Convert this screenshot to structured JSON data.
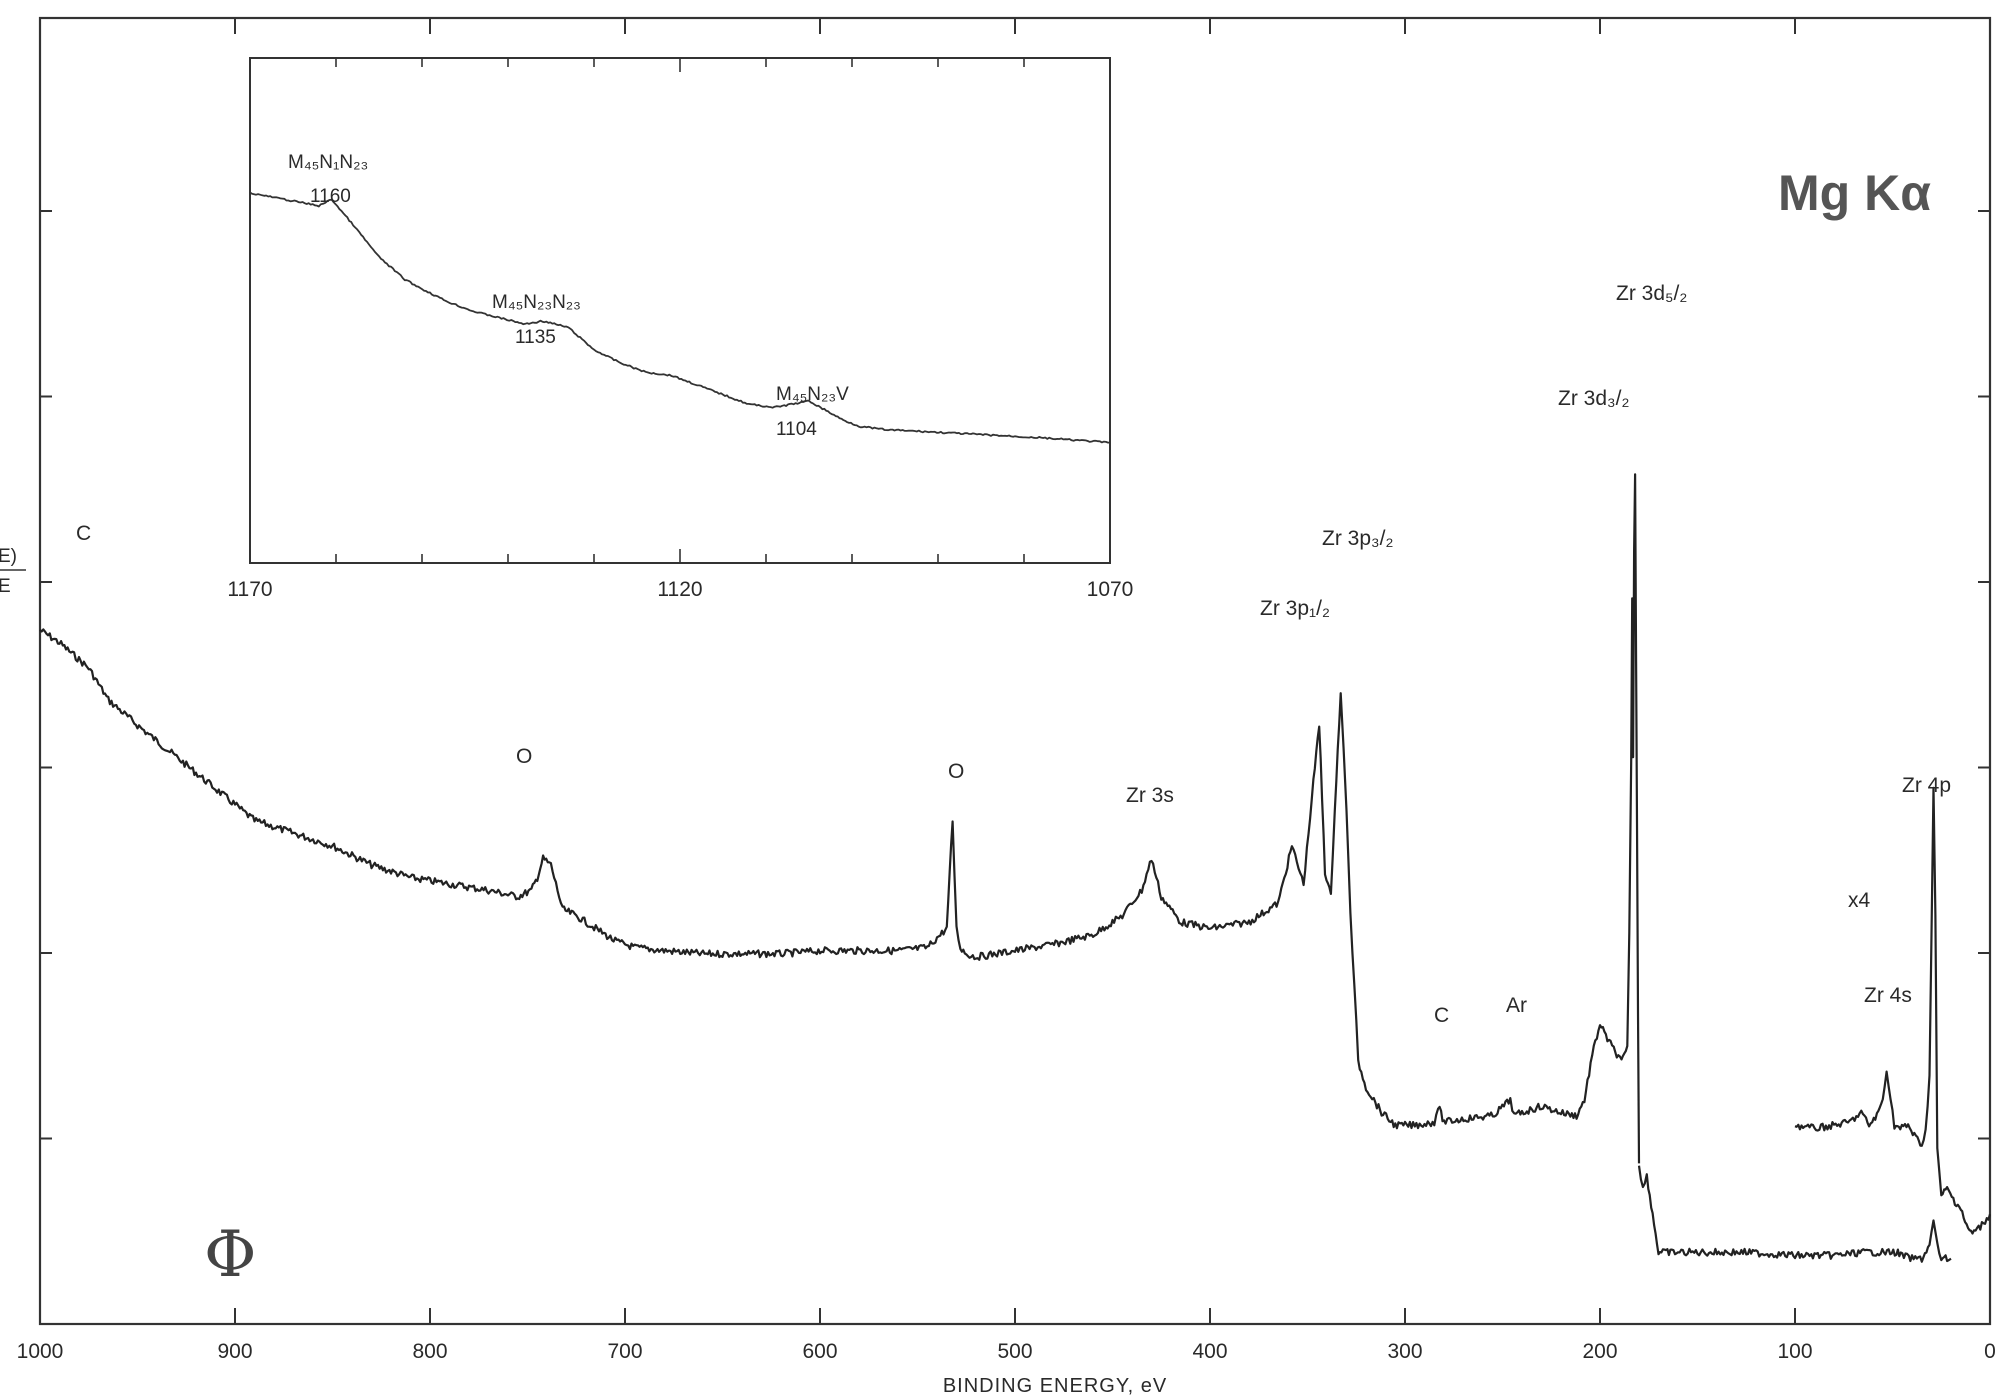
{
  "chart_data": [
    {
      "type": "line",
      "title": "",
      "source_label": "Mg Kα",
      "xlabel": "BINDING ENERGY, eV",
      "ylabel_partial": [
        "E)",
        "E"
      ],
      "xlim": [
        1000,
        0
      ],
      "x_reversed": true,
      "x_ticks": [
        "1000",
        "900",
        "800",
        "700",
        "600",
        "500",
        "400",
        "300",
        "200",
        "100",
        "0"
      ],
      "y_ticks": 6,
      "grid": false,
      "legend": "none",
      "scale_note": "x4",
      "annotations": [
        "C",
        "O",
        "O",
        "Zr 3s",
        "Zr 3p₁/₂",
        "Zr 3p₃/₂",
        "Zr 3d₃/₂",
        "Zr 3d₅/₂",
        "C",
        "Ar",
        "Zr 4s",
        "Zr 4p"
      ],
      "series": [
        {
          "x": [
            1000,
            990,
            975,
            965,
            950,
            930,
            910,
            890,
            870,
            850,
            830,
            810,
            790,
            770,
            755,
            748,
            745,
            742,
            738,
            732,
            725,
            715,
            705,
            695,
            680,
            660,
            640,
            620,
            600,
            580,
            560,
            545,
            535,
            532,
            530,
            528,
            525,
            520,
            500,
            480,
            460,
            445,
            435,
            430,
            425,
            415,
            400,
            380,
            365,
            358,
            352,
            347,
            344,
            341,
            338,
            336,
            333,
            330,
            328,
            326,
            324,
            320,
            316,
            312,
            305,
            295,
            285,
            283,
            280,
            270,
            255,
            246,
            244,
            240,
            230,
            220,
            212,
            208,
            204,
            200,
            197,
            193,
            189,
            186,
            185,
            184,
            183.5,
            183,
            182.5,
            182,
            181.5,
            181,
            180.5,
            180
          ],
          "y": [
            100,
            98,
            94,
            89,
            85,
            80,
            75,
            70,
            68,
            66,
            63,
            61,
            60,
            59,
            58,
            59,
            61,
            64,
            63,
            56,
            55,
            53,
            51,
            50,
            49.5,
            49,
            49,
            49,
            49.5,
            49.5,
            49.5,
            50,
            53,
            70,
            53,
            50,
            49,
            48.5,
            49.5,
            50.5,
            52,
            55,
            59,
            64,
            58,
            54,
            53,
            54,
            57,
            66,
            60,
            76,
            85,
            62,
            58,
            72,
            90,
            72,
            55,
            44,
            32,
            28,
            26,
            24,
            22,
            22,
            22.5,
            25,
            22.5,
            23,
            23.5,
            26,
            23.5,
            24,
            25,
            24,
            23.5,
            26,
            33,
            38,
            36,
            34,
            32,
            34,
            52,
            80,
            105,
            80,
            112,
            125,
            95,
            70,
            40,
            16
          ]
        },
        {
          "x": [
            180,
            178,
            176,
            173,
            170,
            167,
            160,
            145,
            125,
            100,
            80,
            65,
            52,
            48,
            45,
            40,
            35,
            31,
            29,
            27,
            25,
            22,
            20
          ],
          "y": [
            16,
            12,
            14,
            8,
            2,
            2,
            2,
            2,
            2,
            1.5,
            1.5,
            2,
            2,
            2,
            1.5,
            1,
            1,
            3,
            7,
            3,
            1,
            1,
            1
          ]
        },
        {
          "name": "x4",
          "x": [
            100,
            90,
            80,
            72,
            66,
            62,
            58,
            55,
            53,
            51,
            49,
            46,
            42,
            38,
            35,
            33,
            31,
            30,
            29,
            28,
            27,
            25,
            22,
            18,
            15,
            12,
            9,
            5,
            0
          ],
          "y": [
            22,
            21.5,
            22,
            22.5,
            24,
            22,
            23.5,
            26,
            31,
            26,
            22,
            21.5,
            22,
            20,
            19,
            21,
            30,
            52,
            75,
            55,
            18,
            11,
            12,
            10,
            9,
            6,
            5,
            6,
            8
          ]
        }
      ]
    },
    {
      "type": "line",
      "title": "",
      "xlabel": "",
      "xlim": [
        1170,
        1070
      ],
      "x_reversed": true,
      "x_ticks": [
        "1170",
        "1120",
        "1070"
      ],
      "grid": false,
      "legend": "none",
      "annotations": [
        {
          "label": "M₄₅N₁N₂₃",
          "value": "1160"
        },
        {
          "label": "M₄₅N₂₃N₂₃",
          "value": "1135"
        },
        {
          "label": "M₄₅N₂₃V",
          "value": "1104"
        }
      ],
      "series": [
        {
          "x": [
            1170,
            1166,
            1162,
            1160.5,
            1158,
            1155,
            1152,
            1150,
            1147,
            1144,
            1141,
            1138,
            1136,
            1133,
            1130,
            1127,
            1124,
            1121,
            1118,
            1115,
            1112,
            1109,
            1107,
            1105,
            1103,
            1101,
            1099,
            1096,
            1092,
            1085,
            1078,
            1070
          ],
          "y": [
            100,
            98,
            96,
            98,
            90,
            80,
            73,
            70,
            66,
            63,
            61,
            59,
            60,
            58,
            51,
            47,
            44,
            43,
            40,
            37,
            34,
            33,
            34,
            35,
            32,
            29,
            27,
            26,
            25.5,
            24.5,
            23.5,
            22
          ]
        }
      ]
    }
  ]
}
